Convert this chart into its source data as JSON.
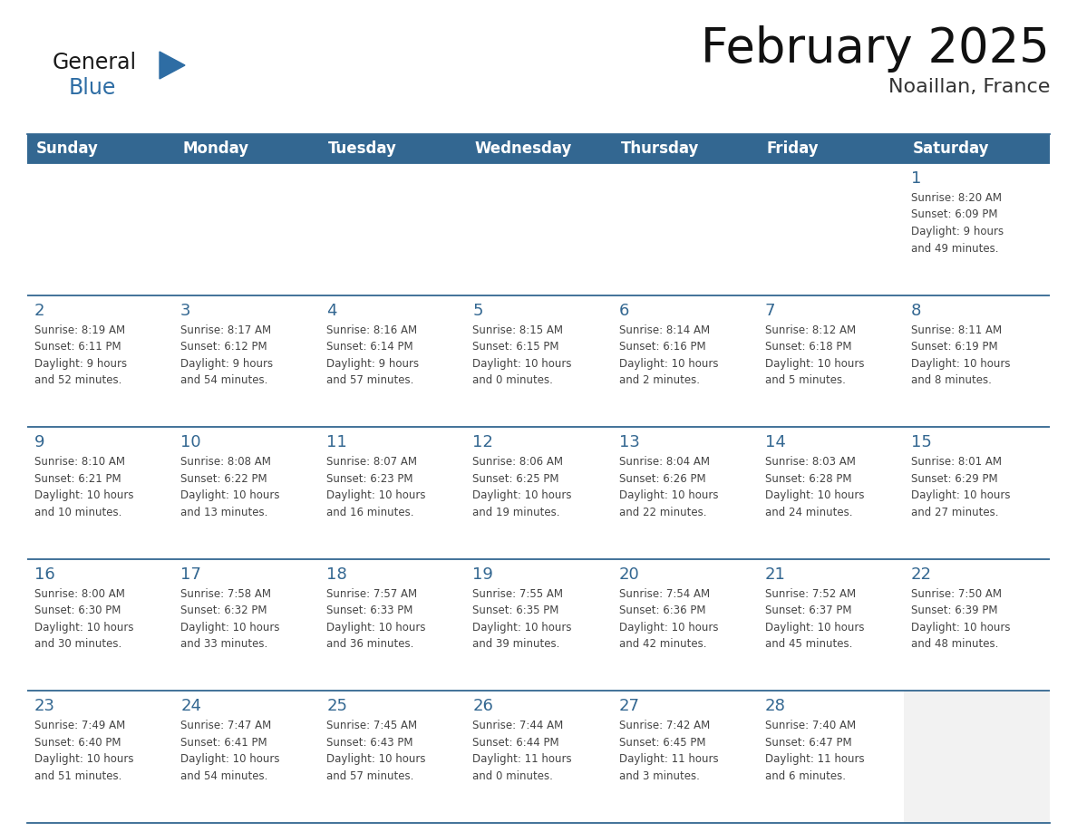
{
  "title": "February 2025",
  "subtitle": "Noaillan, France",
  "header_bg_color": "#336791",
  "header_text_color": "#FFFFFF",
  "cell_bg_color": "#FFFFFF",
  "cell_bg_alt_color": "#F0F4F8",
  "cell_border_color": "#336791",
  "day_number_color": "#336791",
  "info_text_color": "#444444",
  "background_color": "#FFFFFF",
  "days_of_week": [
    "Sunday",
    "Monday",
    "Tuesday",
    "Wednesday",
    "Thursday",
    "Friday",
    "Saturday"
  ],
  "weeks": [
    [
      {
        "day": "",
        "info": ""
      },
      {
        "day": "",
        "info": ""
      },
      {
        "day": "",
        "info": ""
      },
      {
        "day": "",
        "info": ""
      },
      {
        "day": "",
        "info": ""
      },
      {
        "day": "",
        "info": ""
      },
      {
        "day": "1",
        "info": "Sunrise: 8:20 AM\nSunset: 6:09 PM\nDaylight: 9 hours\nand 49 minutes."
      }
    ],
    [
      {
        "day": "2",
        "info": "Sunrise: 8:19 AM\nSunset: 6:11 PM\nDaylight: 9 hours\nand 52 minutes."
      },
      {
        "day": "3",
        "info": "Sunrise: 8:17 AM\nSunset: 6:12 PM\nDaylight: 9 hours\nand 54 minutes."
      },
      {
        "day": "4",
        "info": "Sunrise: 8:16 AM\nSunset: 6:14 PM\nDaylight: 9 hours\nand 57 minutes."
      },
      {
        "day": "5",
        "info": "Sunrise: 8:15 AM\nSunset: 6:15 PM\nDaylight: 10 hours\nand 0 minutes."
      },
      {
        "day": "6",
        "info": "Sunrise: 8:14 AM\nSunset: 6:16 PM\nDaylight: 10 hours\nand 2 minutes."
      },
      {
        "day": "7",
        "info": "Sunrise: 8:12 AM\nSunset: 6:18 PM\nDaylight: 10 hours\nand 5 minutes."
      },
      {
        "day": "8",
        "info": "Sunrise: 8:11 AM\nSunset: 6:19 PM\nDaylight: 10 hours\nand 8 minutes."
      }
    ],
    [
      {
        "day": "9",
        "info": "Sunrise: 8:10 AM\nSunset: 6:21 PM\nDaylight: 10 hours\nand 10 minutes."
      },
      {
        "day": "10",
        "info": "Sunrise: 8:08 AM\nSunset: 6:22 PM\nDaylight: 10 hours\nand 13 minutes."
      },
      {
        "day": "11",
        "info": "Sunrise: 8:07 AM\nSunset: 6:23 PM\nDaylight: 10 hours\nand 16 minutes."
      },
      {
        "day": "12",
        "info": "Sunrise: 8:06 AM\nSunset: 6:25 PM\nDaylight: 10 hours\nand 19 minutes."
      },
      {
        "day": "13",
        "info": "Sunrise: 8:04 AM\nSunset: 6:26 PM\nDaylight: 10 hours\nand 22 minutes."
      },
      {
        "day": "14",
        "info": "Sunrise: 8:03 AM\nSunset: 6:28 PM\nDaylight: 10 hours\nand 24 minutes."
      },
      {
        "day": "15",
        "info": "Sunrise: 8:01 AM\nSunset: 6:29 PM\nDaylight: 10 hours\nand 27 minutes."
      }
    ],
    [
      {
        "day": "16",
        "info": "Sunrise: 8:00 AM\nSunset: 6:30 PM\nDaylight: 10 hours\nand 30 minutes."
      },
      {
        "day": "17",
        "info": "Sunrise: 7:58 AM\nSunset: 6:32 PM\nDaylight: 10 hours\nand 33 minutes."
      },
      {
        "day": "18",
        "info": "Sunrise: 7:57 AM\nSunset: 6:33 PM\nDaylight: 10 hours\nand 36 minutes."
      },
      {
        "day": "19",
        "info": "Sunrise: 7:55 AM\nSunset: 6:35 PM\nDaylight: 10 hours\nand 39 minutes."
      },
      {
        "day": "20",
        "info": "Sunrise: 7:54 AM\nSunset: 6:36 PM\nDaylight: 10 hours\nand 42 minutes."
      },
      {
        "day": "21",
        "info": "Sunrise: 7:52 AM\nSunset: 6:37 PM\nDaylight: 10 hours\nand 45 minutes."
      },
      {
        "day": "22",
        "info": "Sunrise: 7:50 AM\nSunset: 6:39 PM\nDaylight: 10 hours\nand 48 minutes."
      }
    ],
    [
      {
        "day": "23",
        "info": "Sunrise: 7:49 AM\nSunset: 6:40 PM\nDaylight: 10 hours\nand 51 minutes."
      },
      {
        "day": "24",
        "info": "Sunrise: 7:47 AM\nSunset: 6:41 PM\nDaylight: 10 hours\nand 54 minutes."
      },
      {
        "day": "25",
        "info": "Sunrise: 7:45 AM\nSunset: 6:43 PM\nDaylight: 10 hours\nand 57 minutes."
      },
      {
        "day": "26",
        "info": "Sunrise: 7:44 AM\nSunset: 6:44 PM\nDaylight: 11 hours\nand 0 minutes."
      },
      {
        "day": "27",
        "info": "Sunrise: 7:42 AM\nSunset: 6:45 PM\nDaylight: 11 hours\nand 3 minutes."
      },
      {
        "day": "28",
        "info": "Sunrise: 7:40 AM\nSunset: 6:47 PM\nDaylight: 11 hours\nand 6 minutes."
      },
      {
        "day": "",
        "info": ""
      }
    ]
  ],
  "logo_text_general": "General",
  "logo_text_blue": "Blue",
  "logo_color_general": "#1a1a1a",
  "logo_color_blue": "#2E6DA4",
  "logo_triangle_color": "#2E6DA4",
  "title_fontsize": 38,
  "subtitle_fontsize": 16,
  "header_fontsize": 12,
  "day_number_fontsize": 13,
  "info_fontsize": 8.5
}
